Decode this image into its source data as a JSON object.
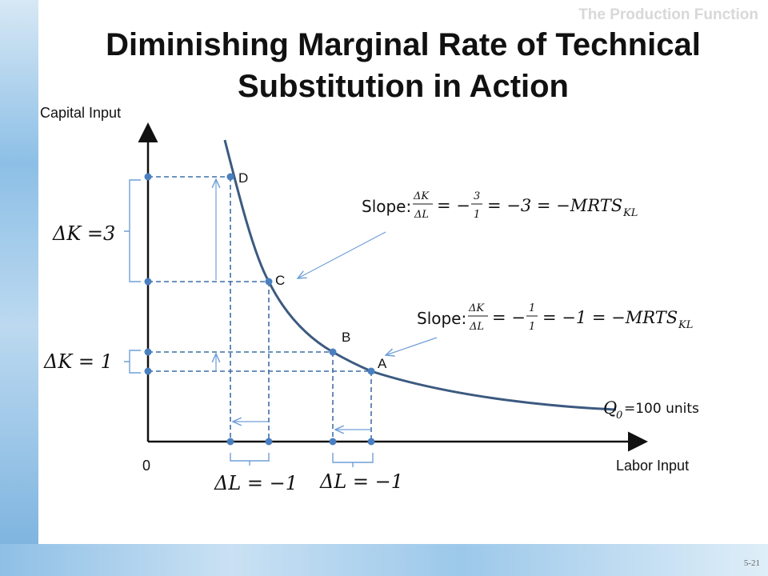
{
  "slide": {
    "section_title": "The Production Function",
    "title_line1": "Diminishing Marginal Rate of Technical",
    "title_line2": "Substitution in Action",
    "slide_number": "5-21"
  },
  "axes": {
    "y_label": "Capital Input",
    "x_label": "Labor Input",
    "origin_label": "0"
  },
  "points": [
    {
      "label": "D"
    },
    {
      "label": "C"
    },
    {
      "label": "B"
    },
    {
      "label": "A"
    }
  ],
  "isoquant": {
    "label_q": "Q",
    "label_sub": "0",
    "label_rest": "=100 units"
  },
  "annotations": {
    "delta_k_3": "ΔK =3",
    "delta_k_1": "ΔK = 1",
    "delta_l_left": "ΔL = −1",
    "delta_l_right": "ΔL = −1",
    "slope1_prefix": "Slope:",
    "slope1_frac_num": "ΔK",
    "slope1_frac_den": "ΔL",
    "slope1_eq": "= −",
    "slope1_num": "3",
    "slope1_den": "1",
    "slope1_result": "= −3 = −MRTS",
    "slope1_sub": "KL",
    "slope2_prefix": "Slope:",
    "slope2_frac_num": "ΔK",
    "slope2_frac_den": "ΔL",
    "slope2_eq": "= −",
    "slope2_num": "1",
    "slope2_den": "1",
    "slope2_result": "= −1 = −MRTS",
    "slope2_sub": "KL"
  },
  "colors": {
    "curve": "#3c5a80",
    "dashed": "#3f6fa8",
    "point": "#4a7fc0",
    "bracket": "#6f9fd8"
  }
}
